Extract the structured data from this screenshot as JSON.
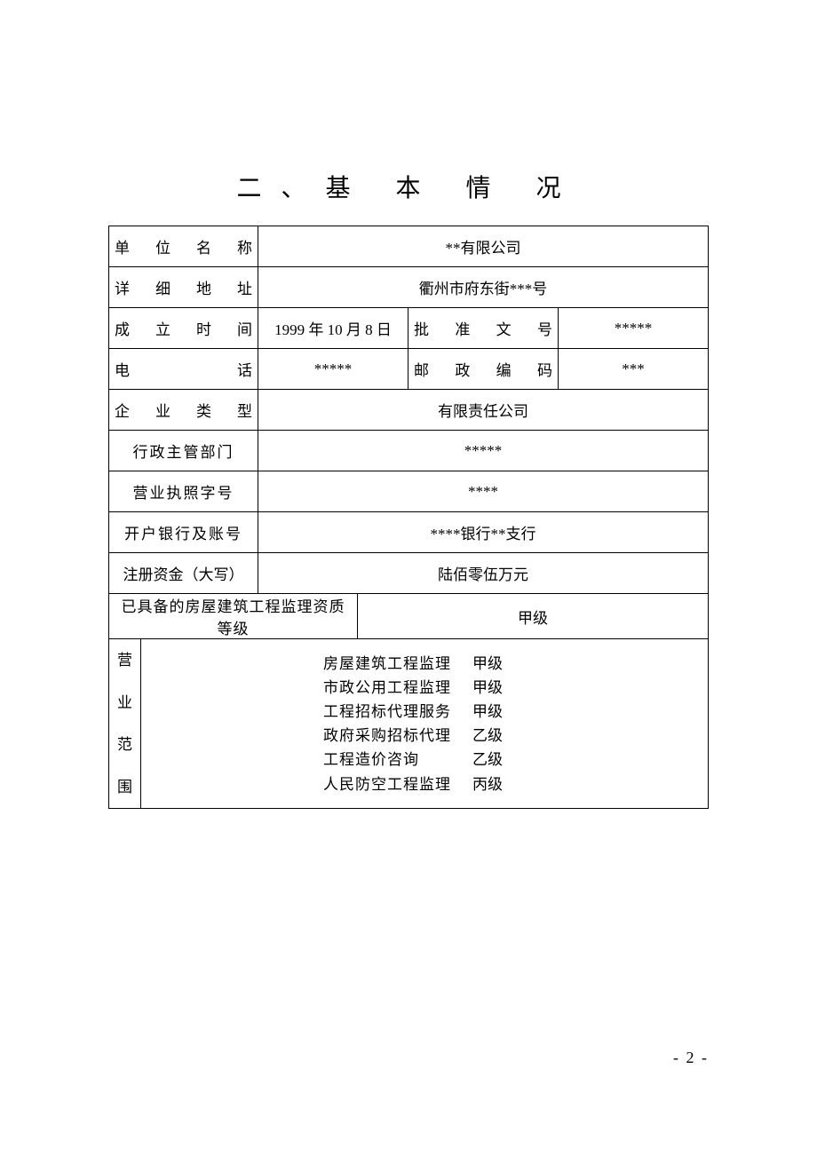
{
  "title": "二、基 本 情 况",
  "labels": {
    "company_name": "单 位 名 称",
    "address": "详 细 地 址",
    "founded": "成 立 时 间",
    "approval_no": "批 准 文 号",
    "phone": "电     话",
    "postcode": "邮 政 编 码",
    "enterprise_type": "企 业 类 型",
    "admin_dept": "行政主管部门",
    "license_no": "营业执照字号",
    "bank": "开户银行及账号",
    "reg_capital": "注册资金（大写）",
    "existing_qual": "已具备的房屋建筑工程监理资质等级",
    "scope": "营\n业\n范\n围"
  },
  "values": {
    "company_name": "**有限公司",
    "address": "衢州市府东街***号",
    "founded": "1999 年 10 月 8 日",
    "approval_no": "*****",
    "phone": "*****",
    "postcode": "***",
    "enterprise_type": "有限责任公司",
    "admin_dept": "*****",
    "license_no": "****",
    "bank": "****银行**支行",
    "reg_capital": "陆佰零伍万元",
    "existing_qual_grade": "甲级"
  },
  "scope_items": [
    {
      "name": "房屋建筑工程监理",
      "grade": "甲级"
    },
    {
      "name": "市政公用工程监理",
      "grade": "甲级"
    },
    {
      "name": "工程招标代理服务",
      "grade": "甲级"
    },
    {
      "name": "政府采购招标代理",
      "grade": "乙级"
    },
    {
      "name": "工程造价咨询",
      "grade": "乙级"
    },
    {
      "name": "人民防空工程监理",
      "grade": "丙级"
    }
  ],
  "page_number": "- 2 -"
}
